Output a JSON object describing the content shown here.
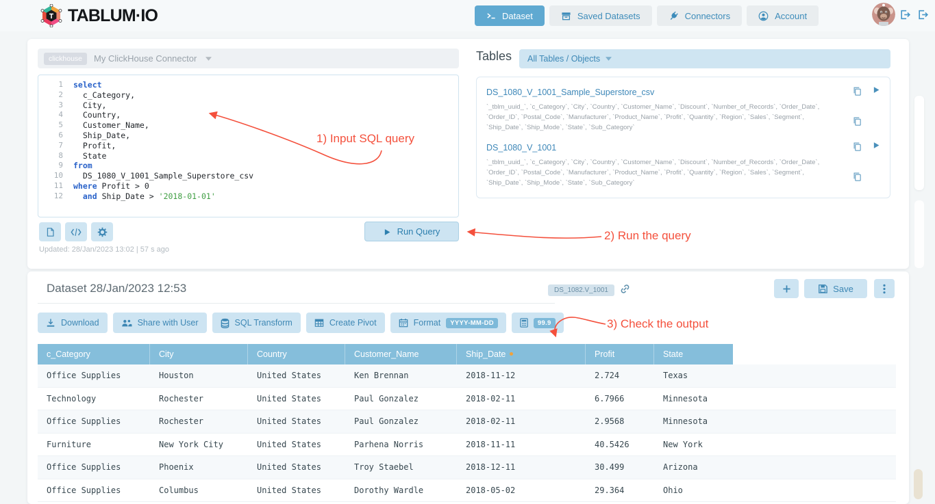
{
  "brand": {
    "name": "TABLUM·IO"
  },
  "nav": {
    "items": [
      {
        "id": "dataset",
        "label": "Dataset",
        "icon": "terminal-icon",
        "active": true
      },
      {
        "id": "saved-datasets",
        "label": "Saved Datasets",
        "icon": "archive-icon",
        "active": false
      },
      {
        "id": "connectors",
        "label": "Connectors",
        "icon": "plug-icon",
        "active": false
      },
      {
        "id": "account",
        "label": "Account",
        "icon": "account-icon",
        "active": false
      }
    ]
  },
  "connector": {
    "badge": "clickhouse",
    "name": "My ClickHouse Connector"
  },
  "editor": {
    "run_label": "Run Query",
    "updated": "Updated: 28/Jan/2023 13:02 | 57 s ago",
    "lines": [
      [
        {
          "t": "select",
          "c": "kw"
        }
      ],
      [
        {
          "t": "  c_Category,",
          "c": "pl"
        }
      ],
      [
        {
          "t": "  City,",
          "c": "pl"
        }
      ],
      [
        {
          "t": "  Country,",
          "c": "pl"
        }
      ],
      [
        {
          "t": "  Customer_Name,",
          "c": "pl"
        }
      ],
      [
        {
          "t": "  Ship_Date,",
          "c": "pl"
        }
      ],
      [
        {
          "t": "  Profit,",
          "c": "pl"
        }
      ],
      [
        {
          "t": "  State",
          "c": "pl"
        }
      ],
      [
        {
          "t": "from",
          "c": "kw"
        }
      ],
      [
        {
          "t": "  DS_1080_V_1001_Sample_Superstore_csv",
          "c": "pl"
        }
      ],
      [
        {
          "t": "where",
          "c": "kw"
        },
        {
          "t": " Profit > 0",
          "c": "pl"
        }
      ],
      [
        {
          "t": "  ",
          "c": "pl"
        },
        {
          "t": "and",
          "c": "kw"
        },
        {
          "t": " Ship_Date > ",
          "c": "pl"
        },
        {
          "t": "'2018-01-01'",
          "c": "str"
        }
      ]
    ]
  },
  "tables": {
    "title": "Tables",
    "filter_label": "All Tables / Objects",
    "items": [
      {
        "name": "DS_1080_V_1001_Sample_Superstore_csv",
        "columns": "`_tblm_uuid_`, `c_Category`, `City`, `Country`, `Customer_Name`, `Discount`, `Number_of_Records`, `Order_Date`, `Order_ID`, `Postal_Code`, `Manufacturer`, `Product_Name`, `Profit`, `Quantity`, `Region`, `Sales`, `Segment`, `Ship_Date`, `Ship_Mode`, `State`, `Sub_Category`"
      },
      {
        "name": "DS_1080_V_1001",
        "columns": "`_tblm_uuid_`, `c_Category`, `City`, `Country`, `Customer_Name`, `Discount`, `Number_of_Records`, `Order_Date`, `Order_ID`, `Postal_Code`, `Manufacturer`, `Product_Name`, `Profit`, `Quantity`, `Region`, `Sales`, `Segment`, `Ship_Date`, `Ship_Mode`, `State`, `Sub_Category`"
      }
    ]
  },
  "dataset": {
    "title": "Dataset 28/Jan/2023 12:53",
    "badge": "DS_1082.V_1001",
    "save_label": "Save",
    "toolbar": [
      {
        "name": "download-button",
        "label": "Download",
        "icon": "download-icon"
      },
      {
        "name": "share-with-user-button",
        "label": "Share with User",
        "icon": "share-icon"
      },
      {
        "name": "sql-transform-button",
        "label": "SQL Transform",
        "icon": "database-icon"
      },
      {
        "name": "create-pivot-button",
        "label": "Create Pivot",
        "icon": "pivot-icon"
      },
      {
        "name": "format-button",
        "label": "Format",
        "icon": "calendar-icon",
        "badge": "YYYY-MM-DD"
      },
      {
        "name": "precision-button",
        "label": "",
        "icon": "calculator-icon",
        "badge": "99.9"
      }
    ]
  },
  "table": {
    "headers": [
      {
        "label": "c_Category"
      },
      {
        "label": "City"
      },
      {
        "label": "Country"
      },
      {
        "label": "Customer_Name"
      },
      {
        "label": "Ship_Date",
        "sorted": true
      },
      {
        "label": "Profit"
      },
      {
        "label": "State"
      }
    ],
    "rows": [
      [
        "Office Supplies",
        "Houston",
        "United States",
        "Ken Brennan",
        "2018-11-12",
        "2.724",
        "Texas"
      ],
      [
        "Technology",
        "Rochester",
        "United States",
        "Paul Gonzalez",
        "2018-02-11",
        "6.7966",
        "Minnesota"
      ],
      [
        "Office Supplies",
        "Rochester",
        "United States",
        "Paul Gonzalez",
        "2018-02-11",
        "2.9568",
        "Minnesota"
      ],
      [
        "Furniture",
        "New York City",
        "United States",
        "Parhena Norris",
        "2018-11-11",
        "40.5426",
        "New York"
      ],
      [
        "Office Supplies",
        "Phoenix",
        "United States",
        "Troy Staebel",
        "2018-12-11",
        "30.499",
        "Arizona"
      ],
      [
        "Office Supplies",
        "Columbus",
        "United States",
        "Dorothy Wardle",
        "2018-05-02",
        "29.364",
        "Ohio"
      ]
    ]
  },
  "annotations": [
    {
      "label": "1) Input SQL query"
    },
    {
      "label": "2) Run the query"
    },
    {
      "label": "3) Check the output"
    }
  ],
  "colors": {
    "accent": "#5fa9d1",
    "button_light": "#cde4f2",
    "table_header": "#85bedb",
    "link": "#3d87b8",
    "annotation": "#f4503c",
    "keyword": "#2962c9",
    "string": "#3f9e43"
  }
}
